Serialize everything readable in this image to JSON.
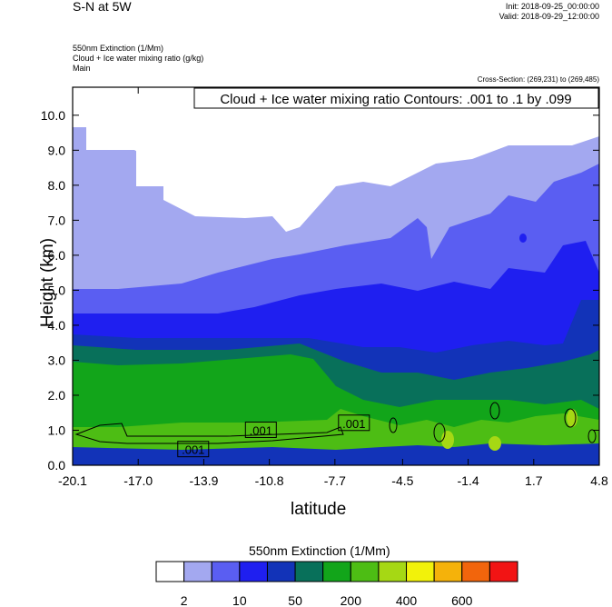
{
  "header": {
    "title": "S-N at 5W",
    "init": "Init: 2018-09-25_00:00:00",
    "valid": "Valid: 2018-09-29_12:00:00",
    "field1": "550nm Extinction   (1/Mm)",
    "field2": "Cloud + Ice water mixing ratio   (g/kg)",
    "field3": "Main",
    "cross_section": "Cross-Section: (269,231) to (269,485)"
  },
  "chart_data": {
    "type": "heatmap",
    "title": "Cloud + Ice water mixing ratio Contours: .001 to .1 by .099",
    "xlabel": "latitude",
    "ylabel": "Height (km)",
    "xlim": [
      -20.1,
      4.8
    ],
    "ylim": [
      0.0,
      10.8
    ],
    "x_ticks": [
      "-20.1",
      "-17.0",
      "-13.9",
      "-10.8",
      "-7.7",
      "-4.5",
      "-1.4",
      "1.7",
      "4.8"
    ],
    "y_ticks": [
      "0.0",
      "1.0",
      "2.0",
      "3.0",
      "4.0",
      "5.0",
      "6.0",
      "7.0",
      "8.0",
      "9.0",
      "10.0"
    ],
    "contour_labels": [
      ".001",
      ".001",
      ".001"
    ],
    "colorbar": {
      "title": "550nm Extinction  (1/Mm)",
      "colors": [
        "#ffffff",
        "#a3a8f0",
        "#5a5ef2",
        "#1f1ff0",
        "#1233b8",
        "#08705a",
        "#12a51a",
        "#4dbd14",
        "#a6d814",
        "#f2f20a",
        "#f5b20a",
        "#f2650c",
        "#f21414"
      ],
      "tick_labels": [
        "2",
        "10",
        "50",
        "200",
        "400",
        "600"
      ]
    }
  }
}
